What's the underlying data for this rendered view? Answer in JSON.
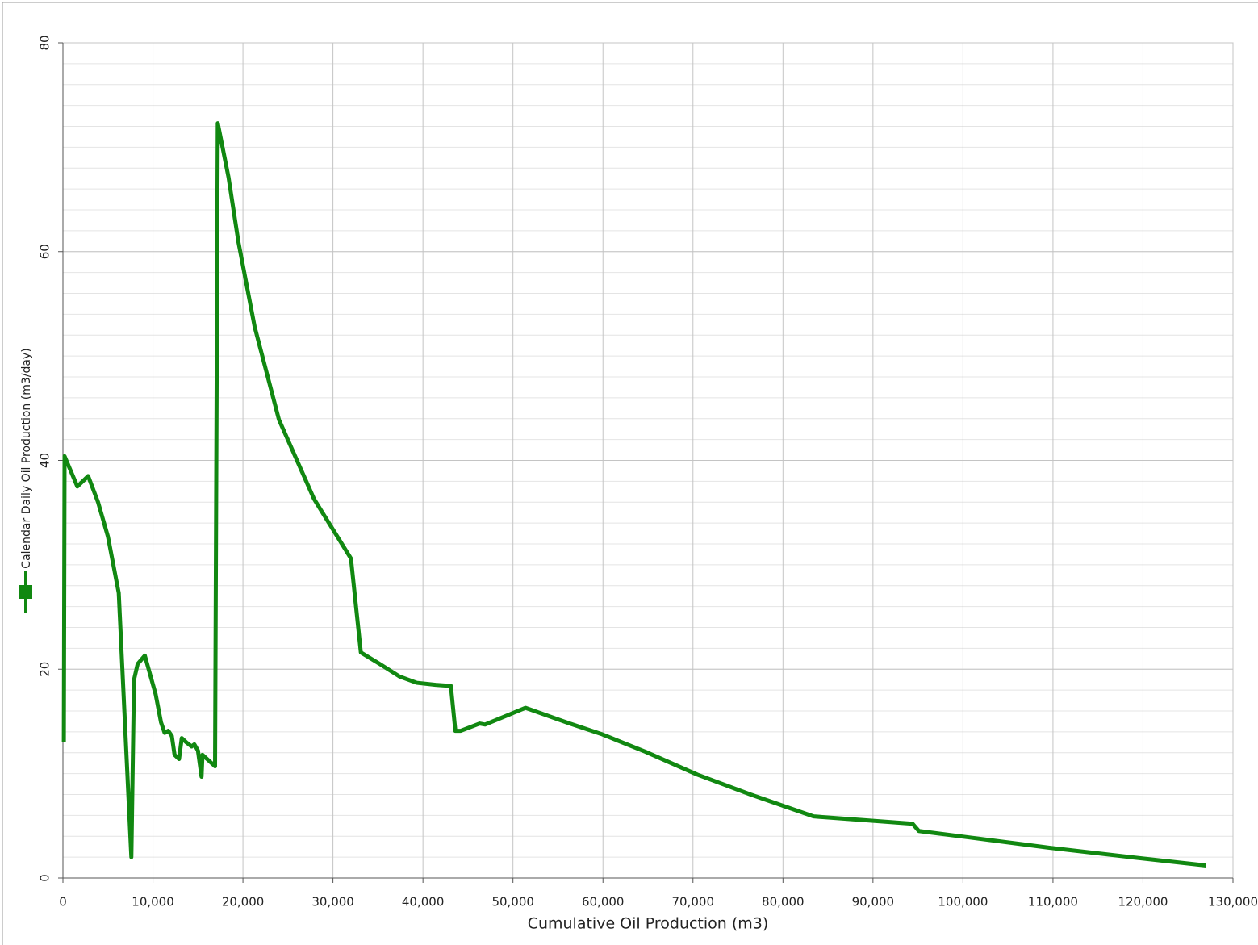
{
  "chart_data": {
    "type": "line",
    "x_label": "Cumulative Oil Production (m3)",
    "y_label": "Calendar Daily  Oil Production (m3/day)",
    "xlim": [
      0,
      130000
    ],
    "xticks": [
      0,
      {
        "value": 10000,
        "label": "10,000"
      },
      {
        "value": 20000,
        "label": "20,000"
      },
      {
        "value": 30000,
        "label": "30,000"
      },
      {
        "value": 40000,
        "label": "40,000"
      },
      {
        "value": 50000,
        "label": "50,000"
      },
      {
        "value": 60000,
        "label": "60,000"
      },
      {
        "value": 70000,
        "label": "70,000"
      },
      {
        "value": 80000,
        "label": "80,000"
      },
      {
        "value": 90000,
        "label": "90,000"
      },
      {
        "value": 100000,
        "label": "100,000"
      },
      {
        "value": 110000,
        "label": "110,000"
      },
      {
        "value": 120000,
        "label": "120,000"
      },
      {
        "value": 130000,
        "label": "130,000"
      }
    ],
    "ylim": [
      0,
      80
    ],
    "yticks": [
      0,
      20,
      40,
      60,
      80
    ],
    "minor_grid_step": 2,
    "grid": true,
    "series": [
      {
        "name": "Calendar Daily  Oil Production (m3/day)",
        "color": "#118811",
        "x": [
          100,
          180,
          1600,
          2800,
          3900,
          5000,
          6200,
          7600,
          7900,
          8300,
          9100,
          10300,
          10900,
          11300,
          11700,
          12100,
          12400,
          12900,
          13200,
          13700,
          14300,
          14600,
          15000,
          15400,
          15500,
          16900,
          17200,
          18400,
          19500,
          21300,
          24000,
          27900,
          32000,
          33100,
          35200,
          37400,
          39300,
          41400,
          43100,
          43600,
          44200,
          46300,
          46900,
          51400,
          56300,
          59800,
          64700,
          70500,
          76400,
          83400,
          94400,
          95100,
          100600,
          109600,
          118600,
          127000
        ],
        "values": [
          13,
          40.4,
          37.5,
          38.5,
          36,
          32.7,
          27.3,
          2,
          19,
          20.5,
          21.3,
          17.6,
          14.9,
          13.9,
          14.1,
          13.6,
          11.8,
          11.4,
          13.4,
          13,
          12.6,
          12.8,
          12.2,
          9.7,
          11.8,
          10.7,
          72.3,
          67.1,
          60.9,
          52.8,
          43.9,
          36.3,
          30.6,
          21.6,
          20.5,
          19.3,
          18.7,
          18.5,
          18.4,
          14.1,
          14.1,
          14.8,
          14.7,
          16.3,
          14.8,
          13.8,
          12.1,
          9.9,
          8,
          5.9,
          5.2,
          4.5,
          3.9,
          2.9,
          2,
          1.2
        ]
      }
    ]
  }
}
